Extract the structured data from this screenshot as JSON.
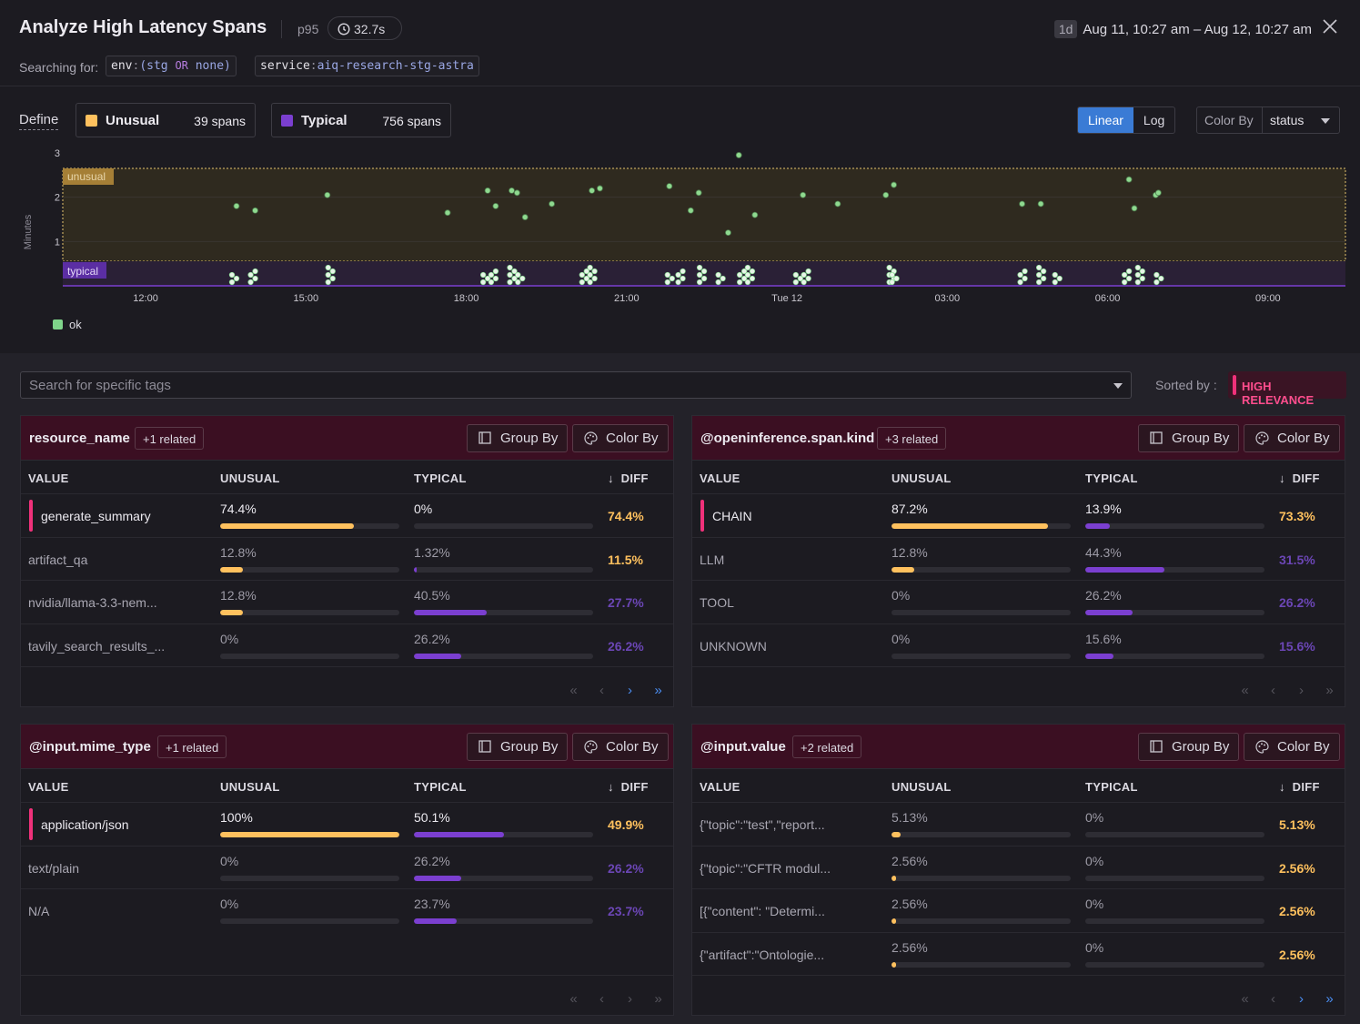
{
  "header": {
    "title": "Analyze High Latency Spans",
    "percentile": "p95",
    "duration": "32.7s",
    "range_badge": "1d",
    "range_text": "Aug 11, 10:27 am – Aug 12, 10:27 am",
    "searching_label": "Searching for:",
    "query1": {
      "key": "env",
      "sep": ":",
      "open": "(",
      "v1": "stg",
      "op": "OR",
      "v2": "none",
      "close": ")"
    },
    "query2": {
      "key": "service",
      "sep": ":",
      "value": "aiq-research-stg-astra"
    }
  },
  "define": {
    "label": "Define",
    "unusual": {
      "label": "Unusual",
      "count": "39 spans",
      "color": "#ffc15e"
    },
    "typical": {
      "label": "Typical",
      "count": "756 spans",
      "color": "#7b3fd0"
    }
  },
  "controls": {
    "linear": "Linear",
    "log": "Log",
    "colorby_label": "Color By",
    "colorby_value": "status"
  },
  "chart_data": {
    "type": "scatter",
    "ylabel": "Minutes",
    "yticks": [
      "1",
      "2",
      "3"
    ],
    "ylim": [
      0,
      3
    ],
    "xticks": [
      "12:00",
      "15:00",
      "18:00",
      "21:00",
      "Tue 12",
      "03:00",
      "06:00",
      "09:00"
    ],
    "band_labels": {
      "unusual": "unusual",
      "typical": "typical"
    },
    "legend": [
      {
        "label": "ok",
        "color": "#7fd48a"
      }
    ],
    "unusual_points": [
      [
        13.7,
        1.8
      ],
      [
        14.05,
        1.7
      ],
      [
        15.4,
        2.05
      ],
      [
        17.65,
        1.65
      ],
      [
        18.4,
        2.15
      ],
      [
        18.55,
        1.8
      ],
      [
        18.85,
        2.15
      ],
      [
        18.95,
        2.1
      ],
      [
        19.1,
        1.55
      ],
      [
        19.6,
        1.85
      ],
      [
        20.35,
        2.15
      ],
      [
        20.5,
        2.2
      ],
      [
        21.8,
        2.25
      ],
      [
        22.2,
        1.7
      ],
      [
        22.35,
        2.1
      ],
      [
        22.9,
        1.2
      ],
      [
        23.1,
        2.95
      ],
      [
        23.4,
        1.6
      ],
      [
        24.3,
        2.05
      ],
      [
        24.95,
        1.85
      ],
      [
        25.85,
        2.05
      ],
      [
        26.0,
        2.28
      ],
      [
        28.4,
        1.85
      ],
      [
        28.75,
        1.85
      ],
      [
        30.4,
        2.4
      ],
      [
        30.5,
        1.75
      ],
      [
        30.9,
        2.05
      ],
      [
        30.95,
        2.1
      ]
    ],
    "typical_clusters": [
      13.65,
      14.0,
      15.45,
      18.35,
      18.5,
      18.85,
      19.0,
      20.2,
      20.35,
      21.8,
      22.0,
      22.4,
      22.75,
      23.15,
      23.3,
      24.2,
      24.35,
      25.95,
      26.0,
      28.4,
      28.75,
      29.05,
      30.35,
      30.6,
      30.95
    ],
    "x_range_hours": [
      10.45,
      34.45
    ]
  },
  "tag_search": {
    "placeholder": "Search for specific tags",
    "sorted_label": "Sorted by :",
    "sorted_value": "HIGH RELEVANCE"
  },
  "panel_common": {
    "group_by": "Group By",
    "color_by": "Color By",
    "col_value": "VALUE",
    "col_unusual": "UNUSUAL",
    "col_typical": "TYPICAL",
    "col_diff": "DIFF"
  },
  "panels": [
    {
      "title": "resource_name",
      "related": "+1 related",
      "rows": [
        {
          "value": "generate_summary",
          "unusual": "74.4%",
          "u": 0.744,
          "typical": "0%",
          "t": 0.0,
          "diff": "74.4%",
          "pos": true,
          "hi": true
        },
        {
          "value": "artifact_qa",
          "unusual": "12.8%",
          "u": 0.128,
          "typical": "1.32%",
          "t": 0.0132,
          "diff": "11.5%",
          "pos": true,
          "hi": false
        },
        {
          "value": "nvidia/llama-3.3-nem...",
          "unusual": "12.8%",
          "u": 0.128,
          "typical": "40.5%",
          "t": 0.405,
          "diff": "27.7%",
          "pos": false,
          "hi": false
        },
        {
          "value": "tavily_search_results_...",
          "unusual": "0%",
          "u": 0.0,
          "typical": "26.2%",
          "t": 0.262,
          "diff": "26.2%",
          "pos": false,
          "hi": false
        }
      ],
      "pager_active": [
        false,
        false,
        true,
        true
      ]
    },
    {
      "title": "@openinference.span.kind",
      "related": "+3 related",
      "rows": [
        {
          "value": "CHAIN",
          "unusual": "87.2%",
          "u": 0.872,
          "typical": "13.9%",
          "t": 0.139,
          "diff": "73.3%",
          "pos": true,
          "hi": true
        },
        {
          "value": "LLM",
          "unusual": "12.8%",
          "u": 0.128,
          "typical": "44.3%",
          "t": 0.443,
          "diff": "31.5%",
          "pos": false,
          "hi": false
        },
        {
          "value": "TOOL",
          "unusual": "0%",
          "u": 0.0,
          "typical": "26.2%",
          "t": 0.262,
          "diff": "26.2%",
          "pos": false,
          "hi": false
        },
        {
          "value": "UNKNOWN",
          "unusual": "0%",
          "u": 0.0,
          "typical": "15.6%",
          "t": 0.156,
          "diff": "15.6%",
          "pos": false,
          "hi": false
        }
      ],
      "pager_active": [
        false,
        false,
        false,
        false
      ]
    },
    {
      "title": "@input.mime_type",
      "related": "+1 related",
      "rows": [
        {
          "value": "application/json",
          "unusual": "100%",
          "u": 1.0,
          "typical": "50.1%",
          "t": 0.501,
          "diff": "49.9%",
          "pos": true,
          "hi": true
        },
        {
          "value": "text/plain",
          "unusual": "0%",
          "u": 0.0,
          "typical": "26.2%",
          "t": 0.262,
          "diff": "26.2%",
          "pos": false,
          "hi": false
        },
        {
          "value": "N/A",
          "unusual": "0%",
          "u": 0.0,
          "typical": "23.7%",
          "t": 0.237,
          "diff": "23.7%",
          "pos": false,
          "hi": false
        }
      ],
      "pager_active": [
        false,
        false,
        false,
        false
      ]
    },
    {
      "title": "@input.value",
      "related": "+2 related",
      "rows": [
        {
          "value": "{\"topic\":\"test\",\"report...",
          "unusual": "5.13%",
          "u": 0.0513,
          "typical": "0%",
          "t": 0.0,
          "diff": "5.13%",
          "pos": true,
          "hi": false
        },
        {
          "value": "{\"topic\":\"CFTR modul...",
          "unusual": "2.56%",
          "u": 0.0256,
          "typical": "0%",
          "t": 0.0,
          "diff": "2.56%",
          "pos": true,
          "hi": false
        },
        {
          "value": "[{\"content\": \"Determi...",
          "unusual": "2.56%",
          "u": 0.0256,
          "typical": "0%",
          "t": 0.0,
          "diff": "2.56%",
          "pos": true,
          "hi": false
        },
        {
          "value": "{\"artifact\":\"Ontologie...",
          "unusual": "2.56%",
          "u": 0.0256,
          "typical": "0%",
          "t": 0.0,
          "diff": "2.56%",
          "pos": true,
          "hi": false
        }
      ],
      "pager_active": [
        false,
        false,
        true,
        true
      ]
    }
  ]
}
